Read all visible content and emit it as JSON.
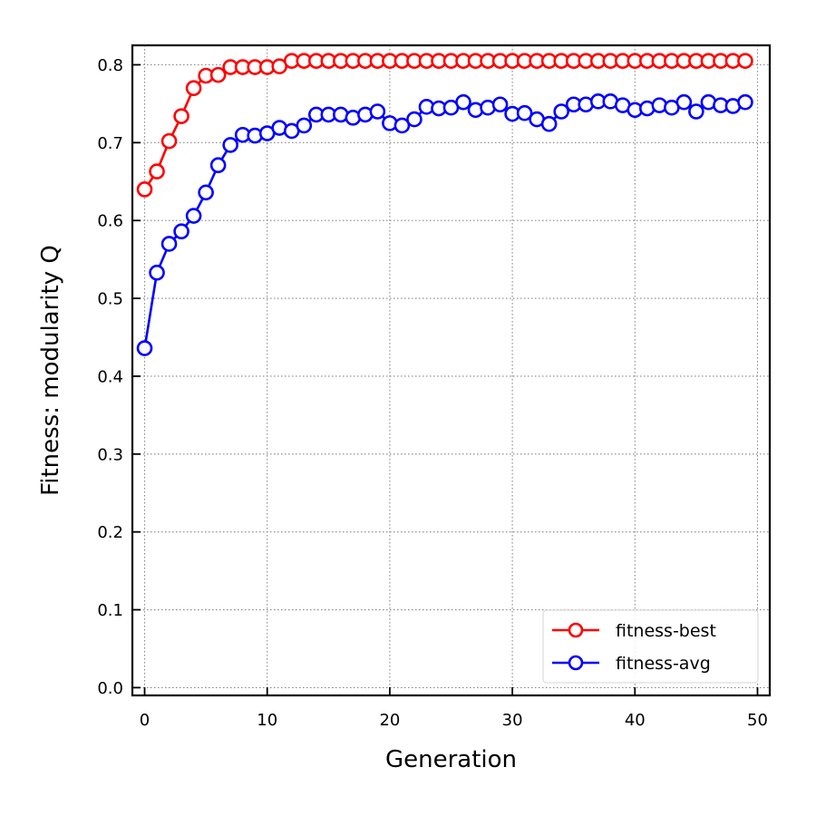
{
  "chart_data": {
    "type": "line",
    "title": "",
    "xlabel": "Generation",
    "ylabel": "Fitness: modularity Q",
    "xlim": [
      -1,
      51
    ],
    "ylim": [
      -0.01,
      0.825
    ],
    "xticks": [
      0,
      10,
      20,
      30,
      40,
      50
    ],
    "yticks": [
      0.0,
      0.1,
      0.2,
      0.3,
      0.4,
      0.5,
      0.6,
      0.7,
      0.8
    ],
    "xtick_labels": [
      "0",
      "10",
      "20",
      "30",
      "40",
      "50"
    ],
    "ytick_labels": [
      "0.0",
      "0.1",
      "0.2",
      "0.3",
      "0.4",
      "0.5",
      "0.6",
      "0.7",
      "0.8"
    ],
    "grid": true,
    "legend_position": "lower-right",
    "x": [
      0,
      1,
      2,
      3,
      4,
      5,
      6,
      7,
      8,
      9,
      10,
      11,
      12,
      13,
      14,
      15,
      16,
      17,
      18,
      19,
      20,
      21,
      22,
      23,
      24,
      25,
      26,
      27,
      28,
      29,
      30,
      31,
      32,
      33,
      34,
      35,
      36,
      37,
      38,
      39,
      40,
      41,
      42,
      43,
      44,
      45,
      46,
      47,
      48,
      49
    ],
    "series": [
      {
        "name": "fitness-best",
        "color": "#ff0000",
        "marker": "open-circle",
        "values": [
          0.64,
          0.663,
          0.702,
          0.734,
          0.77,
          0.786,
          0.787,
          0.797,
          0.797,
          0.797,
          0.797,
          0.798,
          0.805,
          0.805,
          0.805,
          0.805,
          0.805,
          0.805,
          0.805,
          0.805,
          0.805,
          0.805,
          0.805,
          0.805,
          0.805,
          0.805,
          0.805,
          0.805,
          0.805,
          0.805,
          0.805,
          0.805,
          0.805,
          0.805,
          0.805,
          0.805,
          0.805,
          0.805,
          0.805,
          0.805,
          0.805,
          0.805,
          0.805,
          0.805,
          0.805,
          0.805,
          0.805,
          0.805,
          0.805,
          0.805
        ]
      },
      {
        "name": "fitness-avg",
        "color": "#0000ff",
        "marker": "open-circle",
        "values": [
          0.436,
          0.533,
          0.57,
          0.586,
          0.606,
          0.636,
          0.671,
          0.697,
          0.71,
          0.709,
          0.712,
          0.719,
          0.715,
          0.722,
          0.736,
          0.736,
          0.736,
          0.732,
          0.736,
          0.74,
          0.725,
          0.722,
          0.73,
          0.746,
          0.744,
          0.745,
          0.752,
          0.742,
          0.745,
          0.749,
          0.737,
          0.738,
          0.73,
          0.724,
          0.74,
          0.749,
          0.749,
          0.753,
          0.753,
          0.748,
          0.742,
          0.744,
          0.748,
          0.745,
          0.752,
          0.74,
          0.752,
          0.748,
          0.747,
          0.752
        ]
      }
    ]
  }
}
